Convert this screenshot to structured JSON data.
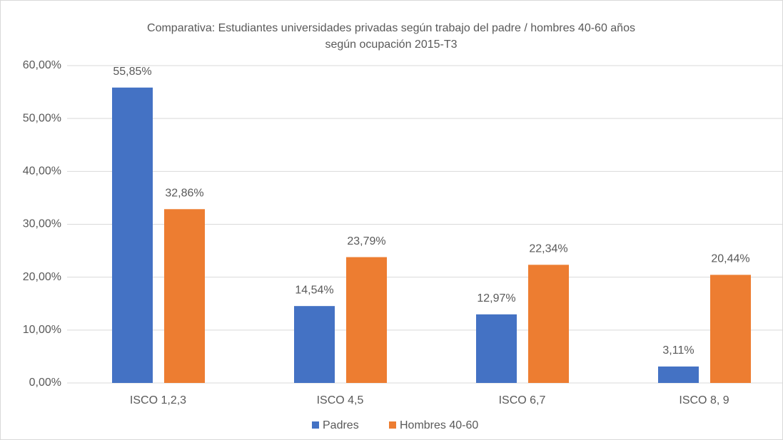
{
  "chart_data": {
    "type": "bar",
    "title": [
      "Comparativa: Estudiantes universidades privadas según trabajo del padre / hombres 40-60 años",
      "según ocupación 2015-T3"
    ],
    "categories": [
      "ISCO 1,2,3",
      "ISCO 4,5",
      "ISCO 6,7",
      "ISCO 8, 9"
    ],
    "series": [
      {
        "name": "Padres",
        "color": "#4472c4",
        "values": [
          55.85,
          14.54,
          12.97,
          3.11
        ],
        "value_labels": [
          "55,85%",
          "14,54%",
          "12,97%",
          "3,11%"
        ]
      },
      {
        "name": "Hombres 40-60",
        "color": "#ed7d31",
        "values": [
          32.86,
          23.79,
          22.34,
          20.44
        ],
        "value_labels": [
          "32,86%",
          "23,79%",
          "22,34%",
          "20,44%"
        ]
      }
    ],
    "ylim": [
      0,
      60
    ],
    "yticks": [
      {
        "value": 0,
        "label": "0,00%"
      },
      {
        "value": 10,
        "label": "10,00%"
      },
      {
        "value": 20,
        "label": "20,00%"
      },
      {
        "value": 30,
        "label": "30,00%"
      },
      {
        "value": 40,
        "label": "40,00%"
      },
      {
        "value": 50,
        "label": "50,00%"
      },
      {
        "value": 60,
        "label": "60,00%"
      }
    ],
    "grid": true,
    "legend": "bottom"
  }
}
